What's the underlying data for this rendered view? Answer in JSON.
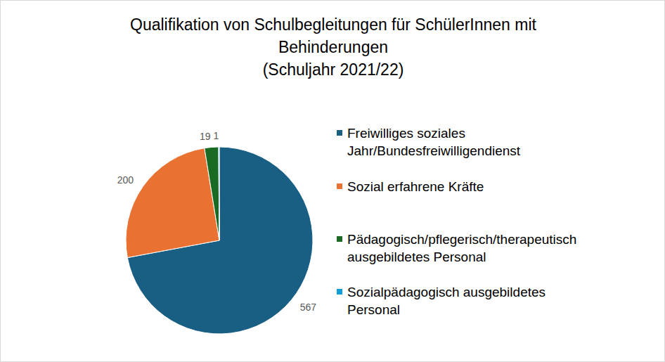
{
  "chart_data": {
    "type": "pie",
    "title": "Qualifikation von Schulbegleitungen für SchülerInnen mit\nBehinderungen\n(Schuljahr 2021/22)",
    "categories": [
      "Freiwilliges soziales Jahr/Bundesfreiwilligendienst",
      "Sozial erfahrene Kräfte",
      "Pädagogisch/pflegerisch/therapeutisch ausgebildetes Personal",
      "Sozialpädagogisch ausgebildetes Personal"
    ],
    "values": [
      567,
      200,
      19,
      1
    ],
    "colors": [
      "#195e83",
      "#e97132",
      "#196b24",
      "#0f9ed5"
    ],
    "data_labels": true,
    "legend": "right"
  }
}
